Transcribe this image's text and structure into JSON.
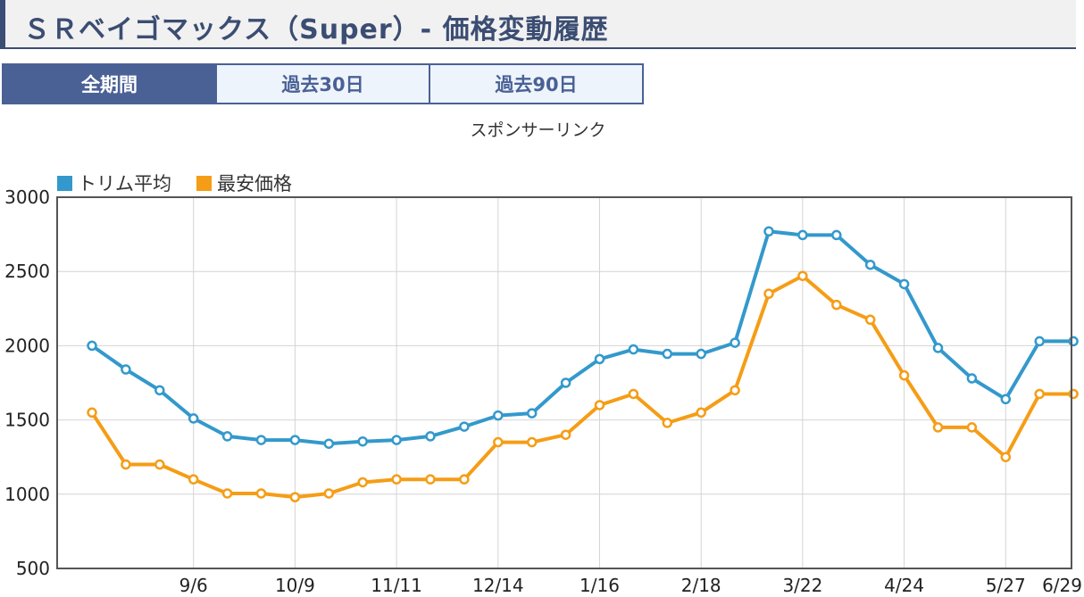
{
  "page": {
    "title": "ＳＲベイゴマックス（Super）- 価格変動履歴",
    "tabs": [
      {
        "label": "全期間",
        "active": true
      },
      {
        "label": "過去30日",
        "active": false
      },
      {
        "label": "過去90日",
        "active": false
      }
    ],
    "sponsor": "スポンサーリンク"
  },
  "colors": {
    "trim_avg": "#3399cc",
    "lowest": "#f59d16"
  },
  "chart_data": {
    "type": "line",
    "title": "",
    "xlabel": "",
    "ylabel": "",
    "ylim": [
      500,
      3000
    ],
    "yticks": [
      500,
      1000,
      1500,
      2000,
      2500,
      3000
    ],
    "xtick_labels": [
      "9/6",
      "10/9",
      "11/11",
      "12/14",
      "1/16",
      "2/18",
      "3/22",
      "4/24",
      "5/27",
      "6/29"
    ],
    "xtick_positions": [
      3,
      6,
      9,
      12,
      15,
      18,
      21,
      24,
      27,
      29.9
    ],
    "x_count": 30,
    "grid": true,
    "legend": "top-left",
    "series": [
      {
        "name": "トリム平均",
        "color": "#3399cc",
        "values": [
          2000,
          1840,
          1700,
          1510,
          1390,
          1365,
          1365,
          1340,
          1355,
          1365,
          1390,
          1455,
          1530,
          1545,
          1750,
          1910,
          1975,
          1945,
          1945,
          2020,
          2770,
          2745,
          2745,
          2545,
          2415,
          1985,
          1780,
          1640,
          2030,
          2030
        ]
      },
      {
        "name": "最安価格",
        "color": "#f59d16",
        "values": [
          1550,
          1200,
          1200,
          1100,
          1005,
          1005,
          980,
          1005,
          1080,
          1100,
          1100,
          1100,
          1350,
          1350,
          1400,
          1600,
          1675,
          1480,
          1550,
          1700,
          2350,
          2470,
          2275,
          2175,
          1800,
          1450,
          1450,
          1250,
          1675,
          1675
        ]
      }
    ]
  }
}
